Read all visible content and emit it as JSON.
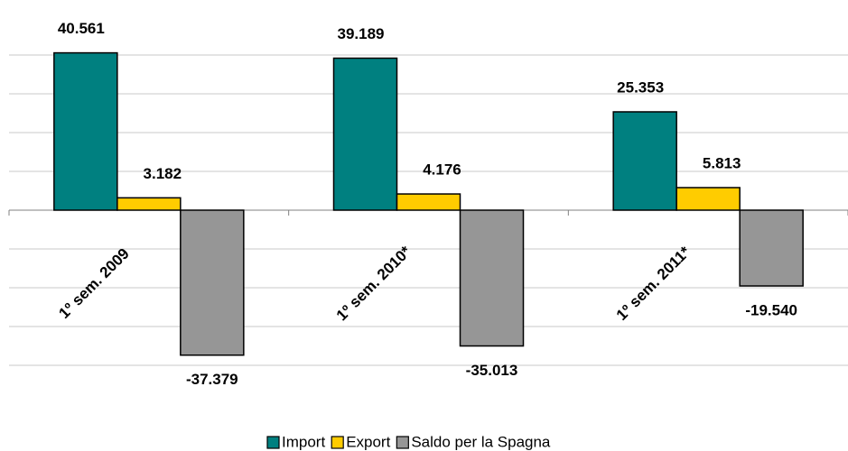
{
  "chart_data": {
    "type": "bar",
    "categories": [
      "1º sem. 2009",
      "1º sem. 2010*",
      "1º sem. 2011*"
    ],
    "series": [
      {
        "name": "Import",
        "color": "#008080",
        "values": [
          40561,
          39189,
          25353
        ],
        "value_labels": [
          "40.561",
          "39.189",
          "25.353"
        ]
      },
      {
        "name": "Export",
        "color": "#ffcc00",
        "values": [
          3182,
          4176,
          5813
        ],
        "value_labels": [
          "3.182",
          "4.176",
          "5.813"
        ]
      },
      {
        "name": "Saldo per la Spagna",
        "color": "#969696",
        "values": [
          -37379,
          -35013,
          -19540
        ],
        "value_labels": [
          "-37.379",
          "-35.013",
          "-19.540"
        ]
      }
    ],
    "ylim": [
      -40000,
      40000
    ],
    "yticks": [
      -40000,
      -30000,
      -20000,
      -10000,
      0,
      10000,
      20000,
      30000,
      40000
    ],
    "grid": true,
    "legend": "bottom"
  }
}
